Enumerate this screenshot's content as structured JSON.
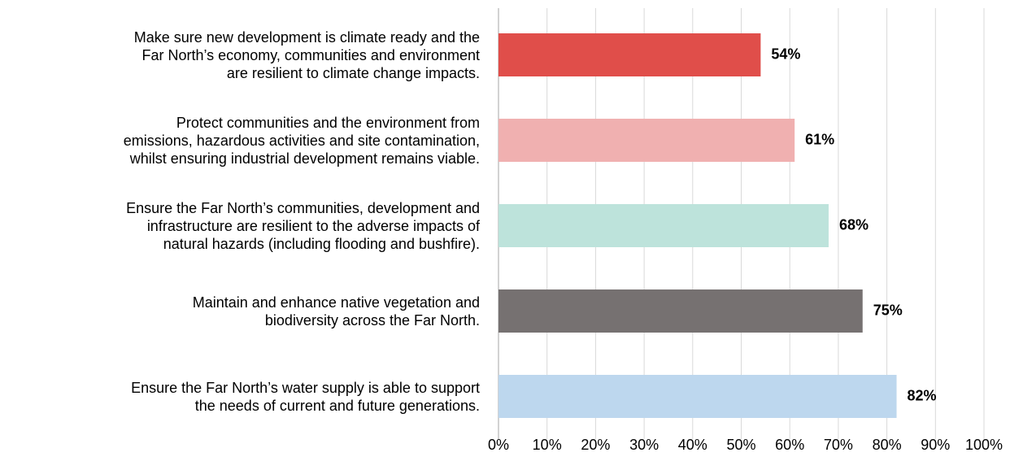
{
  "chart_data": {
    "type": "hbar",
    "categories": [
      "Make sure new development is climate ready and the\nFar North’s economy, communities and environment\nare resilient to climate change impacts.",
      "Protect communities and the environment from\nemissions, hazardous activities and site contamination,\nwhilst ensuring industrial development remains viable.",
      "Ensure the Far North’s communities, development and\ninfrastructure are resilient to the adverse impacts of\nnatural hazards (including flooding and bushfire).",
      "Maintain and enhance native vegetation and\nbiodiversity across the Far North.",
      "Ensure the Far North’s water supply is able to support\nthe needs of current and future generations."
    ],
    "values": [
      54,
      61,
      68,
      75,
      82
    ],
    "value_labels": [
      "54%",
      "61%",
      "68%",
      "75%",
      "82%"
    ],
    "colors": [
      "#e04e4a",
      "#f0b0b0",
      "#bde3db",
      "#767171",
      "#bdd7ee"
    ],
    "xlim": [
      0,
      100
    ],
    "xticks": [
      {
        "value": 0,
        "label": "0%"
      },
      {
        "value": 10,
        "label": "10%"
      },
      {
        "value": 20,
        "label": "20%"
      },
      {
        "value": 30,
        "label": "30%"
      },
      {
        "value": 40,
        "label": "40%"
      },
      {
        "value": 50,
        "label": "50%"
      },
      {
        "value": 60,
        "label": "60%"
      },
      {
        "value": 70,
        "label": "70%"
      },
      {
        "value": 80,
        "label": "80%"
      },
      {
        "value": 90,
        "label": "90%"
      },
      {
        "value": 100,
        "label": "100%"
      }
    ],
    "grid": true
  }
}
